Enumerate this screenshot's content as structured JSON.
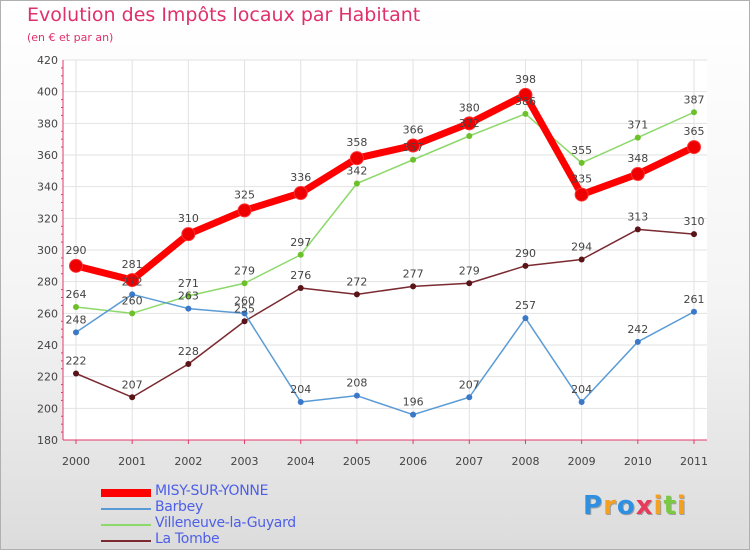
{
  "title": "Evolution des Impôts locaux par Habitant",
  "subtitle": "(en € et par an)",
  "logo": [
    "P",
    "r",
    "o",
    "x",
    "i",
    "t",
    "i"
  ],
  "logo_colors": [
    "#2f8fe0",
    "#f4a020",
    "#2f8fe0",
    "#e83a5a",
    "#f4a020",
    "#7ac943",
    "#f4a020"
  ],
  "chart_data": {
    "type": "line",
    "x": [
      "2000",
      "2001",
      "2002",
      "2003",
      "2004",
      "2005",
      "2006",
      "2007",
      "2008",
      "2009",
      "2010",
      "2011"
    ],
    "yticks": [
      "420",
      "400",
      "380",
      "360",
      "340",
      "320",
      "300",
      "280",
      "260",
      "240",
      "220",
      "200",
      "180"
    ],
    "ylim": [
      180,
      420
    ],
    "grid": true,
    "legend_position": "bottom-left",
    "series": [
      {
        "name": "MISY-SUR-YONNE",
        "color": "#ee0000",
        "line_color": "#ff0000",
        "values": [
          290,
          281,
          310,
          325,
          336,
          358,
          366,
          380,
          398,
          335,
          348,
          365
        ]
      },
      {
        "name": "Barbey",
        "color": "#3b78c8",
        "line_color": "#5b9bd5",
        "values": [
          248,
          272,
          263,
          260,
          204,
          208,
          196,
          207,
          257,
          204,
          242,
          261
        ]
      },
      {
        "name": "Villeneuve-la-Guyard",
        "color": "#6cc02a",
        "line_color": "#8cd96a",
        "values": [
          264,
          260,
          271,
          279,
          297,
          342,
          357,
          372,
          386,
          355,
          371,
          387
        ]
      },
      {
        "name": "La Tombe",
        "color": "#5a1418",
        "line_color": "#7a2a30",
        "values": [
          222,
          207,
          228,
          255,
          276,
          272,
          277,
          279,
          290,
          294,
          313,
          310
        ]
      }
    ],
    "value_labels": [
      [
        "290",
        "281",
        "310",
        "325",
        "336",
        "358",
        "366",
        "380",
        "398",
        "335",
        "348",
        "365"
      ],
      [
        "248",
        "272",
        "263",
        "260",
        "204",
        "208",
        "196",
        "207",
        "257",
        "204",
        "242",
        "261"
      ],
      [
        "264",
        "260",
        "271",
        "279",
        "297",
        "342",
        "357",
        "372",
        "386",
        "355",
        "371",
        "387"
      ],
      [
        "222",
        "207",
        "228",
        "255",
        "276",
        "272",
        "277",
        "279",
        "290",
        "294",
        "313",
        "310"
      ]
    ]
  }
}
